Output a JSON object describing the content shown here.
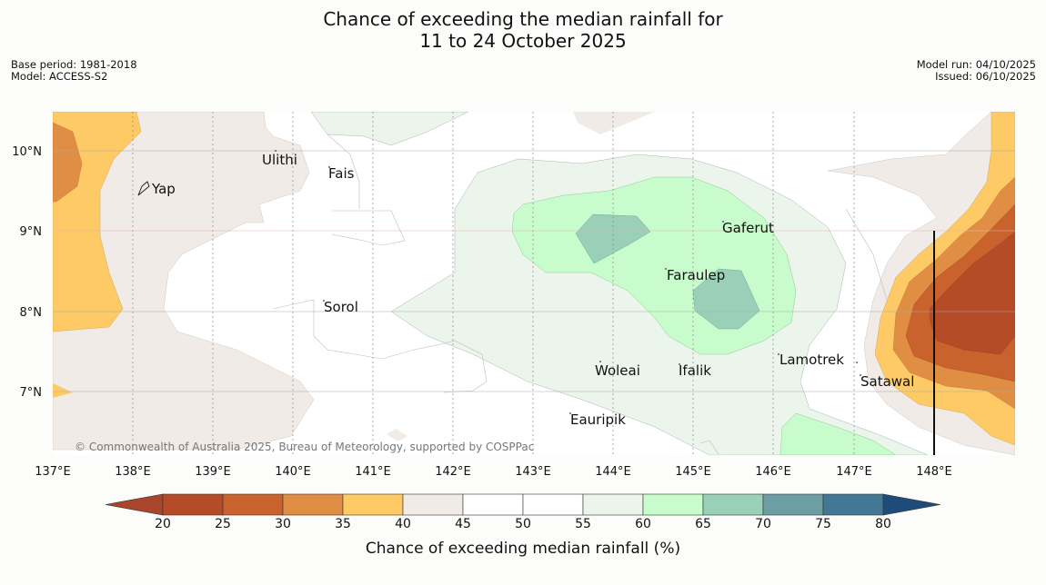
{
  "title": {
    "line1": "Chance of exceeding the median rainfall for",
    "line2": "11 to 24 October 2025"
  },
  "meta_left": {
    "base_period": "Base period: 1981-2018",
    "model": "Model: ACCESS-S2"
  },
  "meta_right": {
    "model_run": "Model run: 04/10/2025",
    "issued": "Issued: 06/10/2025"
  },
  "copyright": "© Commonwealth of Australia 2025, Bureau of Meteorology, supported by COSPPac",
  "lon_ticks": [
    "137°E",
    "138°E",
    "139°E",
    "140°E",
    "141°E",
    "142°E",
    "143°E",
    "144°E",
    "145°E",
    "146°E",
    "147°E",
    "148°E"
  ],
  "lat_ticks": [
    "10°N",
    "9°N",
    "8°N",
    "7°N"
  ],
  "places": [
    "Ulithi",
    "Fais",
    "Yap",
    "Gaferut",
    "Faraulep",
    "Sorol",
    "Lamotrek",
    "Woleai",
    "Ifalik",
    "Satawal",
    "Eauripik"
  ],
  "legend": {
    "title": "Chance of exceeding median rainfall (%)",
    "ticks": [
      "20",
      "25",
      "30",
      "35",
      "40",
      "45",
      "50",
      "55",
      "60",
      "65",
      "70",
      "75",
      "80"
    ],
    "colors": [
      "#a8452a",
      "#b64b28",
      "#ca622e",
      "#e08e44",
      "#fdca66",
      "#f0ebe6",
      "#ffffff",
      "#ffffff",
      "#ebf5ec",
      "#c8fccc",
      "#9acfb8",
      "#6b9fa3",
      "#427894",
      "#1e4c7a"
    ]
  }
}
